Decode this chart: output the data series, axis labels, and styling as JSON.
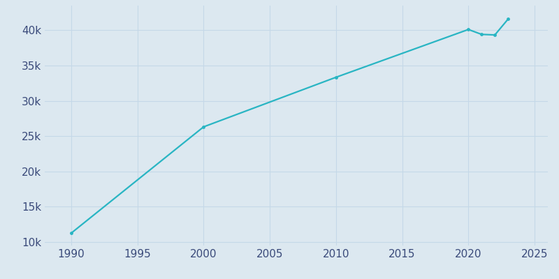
{
  "years": [
    1990,
    2000,
    2010,
    2020,
    2021,
    2022,
    2023
  ],
  "population": [
    11255,
    26316,
    33342,
    40112,
    39418,
    39341,
    41589
  ],
  "line_color": "#29b5c3",
  "marker_color": "#29b5c3",
  "background_color": "#dce8f0",
  "plot_bg_color": "#dce8f0",
  "grid_color": "#c5d8e8",
  "tick_color": "#3a4a7a",
  "xlim": [
    1988,
    2026
  ],
  "ylim": [
    9500,
    43500
  ],
  "xticks": [
    1990,
    1995,
    2000,
    2005,
    2010,
    2015,
    2020,
    2025
  ],
  "yticks": [
    10000,
    15000,
    20000,
    25000,
    30000,
    35000,
    40000
  ]
}
